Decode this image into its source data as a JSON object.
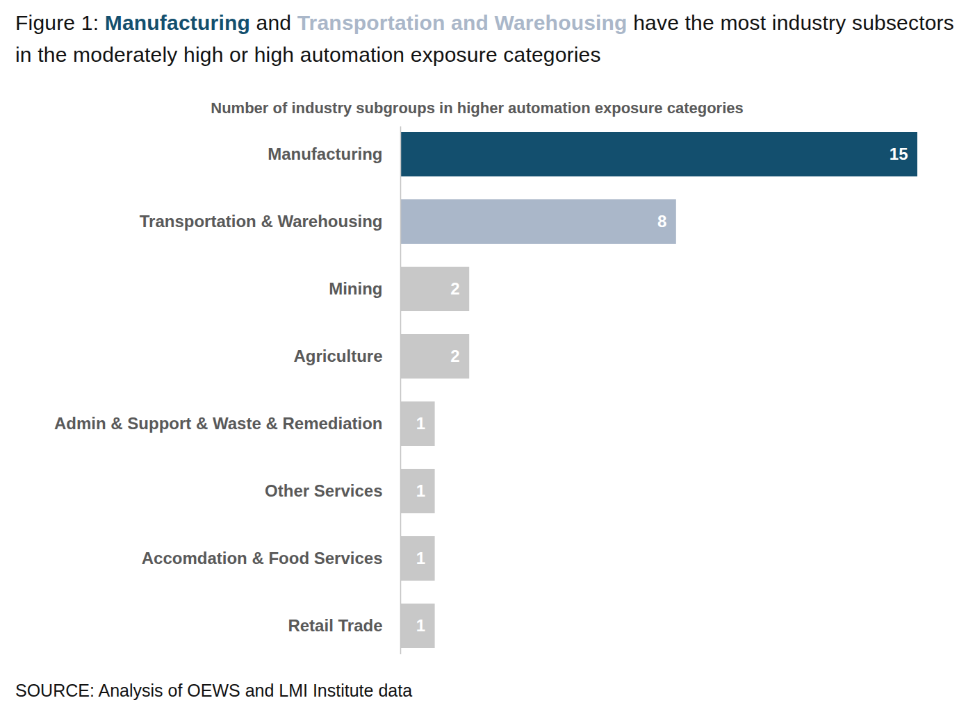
{
  "chart_data": {
    "type": "bar",
    "title": "Figure 1: Manufacturing and Transportation and Warehousing have the most industry subsectors in the moderately high or high automation exposure categories",
    "subtitle": "Number of industry subgroups in higher automation exposure categories",
    "caption": "SOURCE: Analysis of OEWS and LMI Institute data",
    "categories": [
      "Manufacturing",
      "Transportation & Warehousing",
      "Mining",
      "Agriculture",
      "Admin & Support & Waste & Remediation",
      "Other Services",
      "Accomdation & Food Services",
      "Retail Trade"
    ],
    "values": [
      15,
      8,
      2,
      2,
      1,
      1,
      1,
      1
    ],
    "colors": [
      "#134f6e",
      "#aab7c9",
      "#c8c8c8",
      "#c8c8c8",
      "#c8c8c8",
      "#c8c8c8",
      "#c8c8c8",
      "#c8c8c8"
    ],
    "orientation": "horizontal",
    "xlim": [
      0,
      15
    ],
    "data_labels": true,
    "tick_labels": "y"
  }
}
